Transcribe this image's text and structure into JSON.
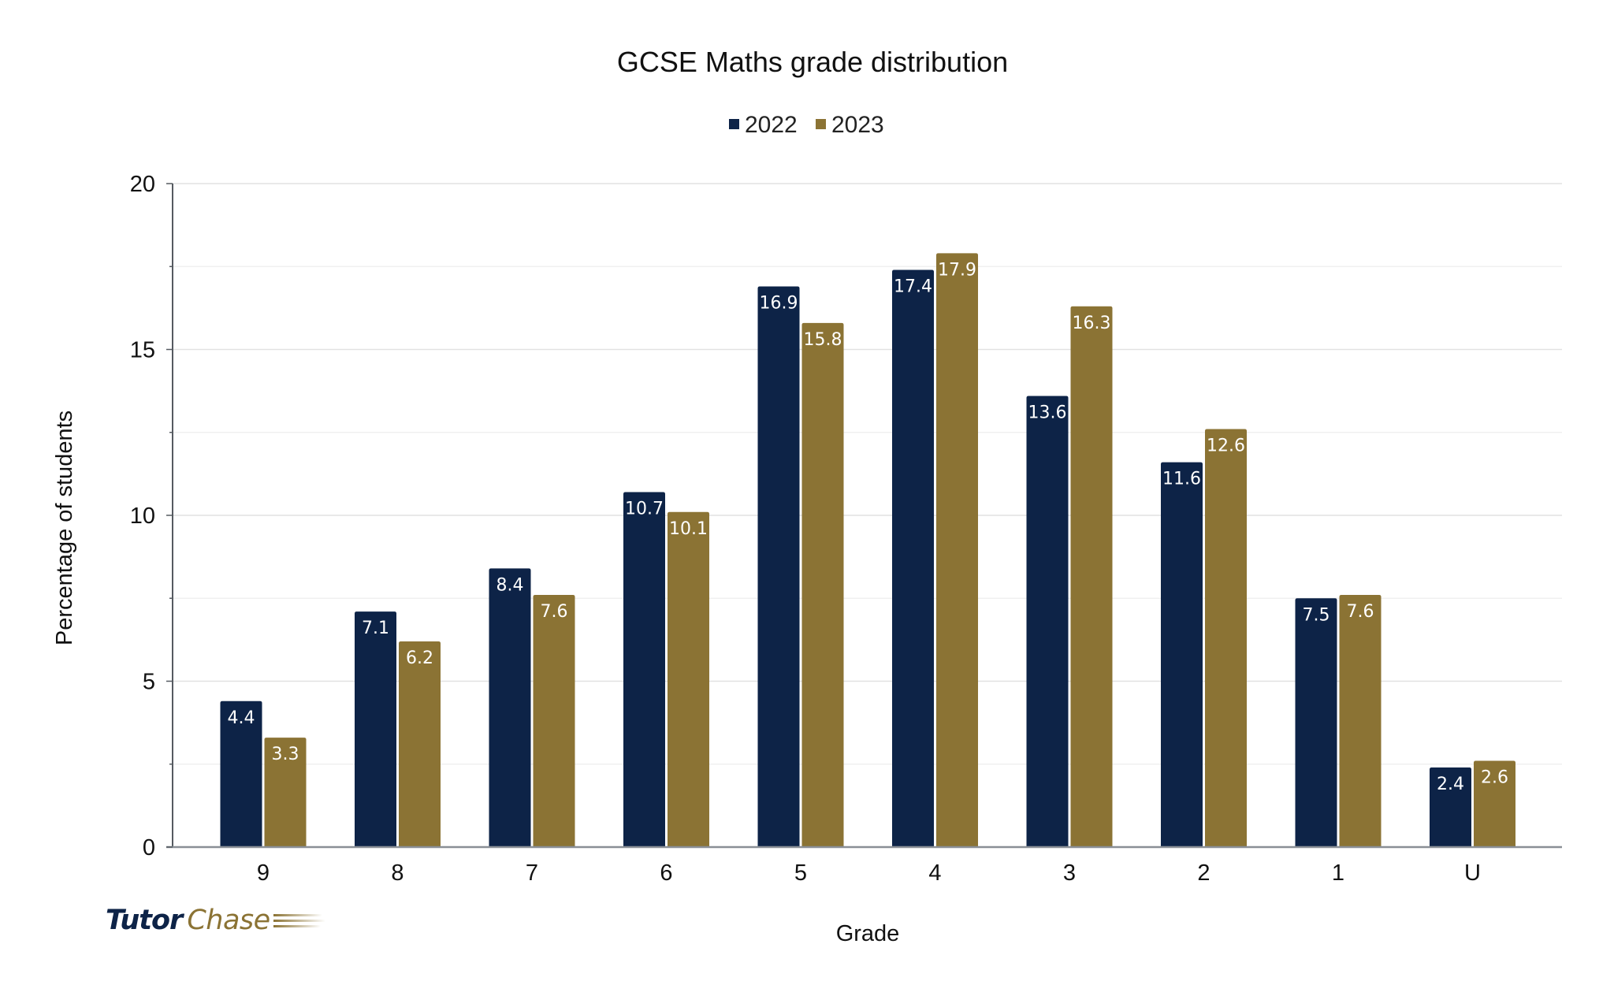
{
  "chart_data": {
    "type": "bar",
    "title": "GCSE Maths grade distribution",
    "xlabel": "Grade",
    "ylabel": "Percentage of students",
    "categories": [
      "9",
      "8",
      "7",
      "6",
      "5",
      "4",
      "3",
      "2",
      "1",
      "U"
    ],
    "series": [
      {
        "name": "2022",
        "color": "#0d2347",
        "values": [
          4.4,
          7.1,
          8.4,
          10.7,
          16.9,
          17.4,
          13.6,
          11.6,
          7.5,
          2.4
        ]
      },
      {
        "name": "2023",
        "color": "#8b7334",
        "values": [
          3.3,
          6.2,
          7.6,
          10.1,
          15.8,
          17.9,
          16.3,
          12.6,
          7.6,
          2.6
        ]
      }
    ],
    "ylim": [
      0,
      20
    ],
    "yticks": [
      0,
      5,
      10,
      15,
      20
    ],
    "minor_yticks": [
      2.5,
      7.5,
      12.5,
      17.5
    ],
    "grid": true,
    "legend_position": "top-center",
    "data_labels": true
  },
  "branding": {
    "logo_part1": "Tutor",
    "logo_part2": "Chase"
  }
}
